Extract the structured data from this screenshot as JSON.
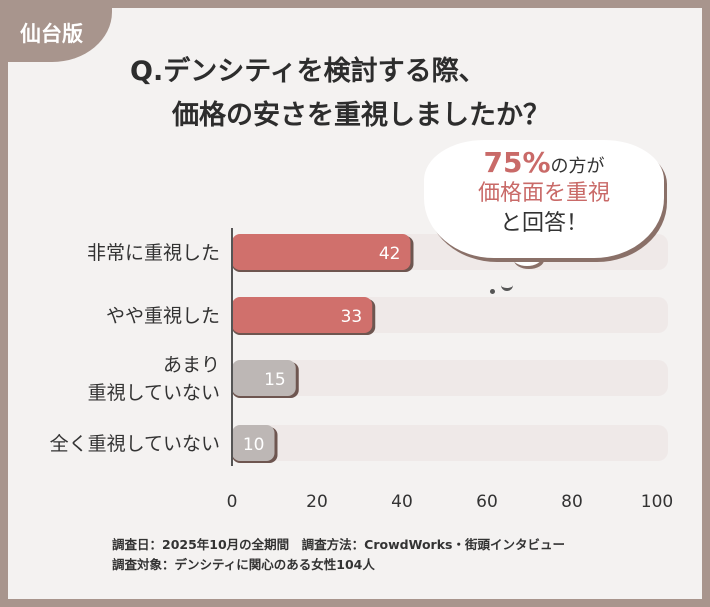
{
  "tag": "仙台版",
  "title": {
    "line1": "Q.デンシティを検討する際、",
    "line2": "価格の安さを重視しましたか？"
  },
  "bubble": {
    "percent": "75%",
    "line1_suffix": "の方が",
    "line2": "価格面を重視",
    "line3": "と回答！"
  },
  "notes": [
    "調査日：2025年10月の全期間　調査方法：CrowdWorks・街頭インタビュー",
    "調査対象：デンシティに関心のある女性104人"
  ],
  "colors": {
    "highlight": "#d0706c",
    "muted": "#bdb7b5",
    "track": "#efe9e8",
    "frame": "#a8958d"
  },
  "chart_data": {
    "type": "bar",
    "orientation": "horizontal",
    "categories": [
      [
        "非常に重視した"
      ],
      [
        "やや重視した"
      ],
      [
        "あまり",
        "重視していない"
      ],
      [
        "全く重視していない"
      ]
    ],
    "values": [
      42,
      33,
      15,
      10
    ],
    "xlim": [
      0,
      100
    ],
    "xticks": [
      "0",
      "20",
      "40",
      "60",
      "80",
      "100"
    ],
    "grid": false
  }
}
